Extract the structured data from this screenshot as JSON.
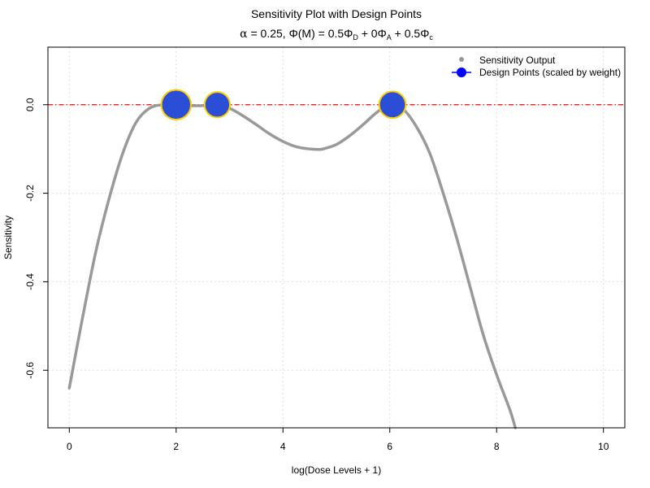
{
  "chart_data": {
    "type": "line",
    "title": "Sensitivity Plot with Design Points",
    "subtitle": {
      "alpha": "α",
      "alpha_eq": " = 0.25, ",
      "phi_m": "Φ(M)",
      "eq1": " = 0.5",
      "phi_d": "Φ",
      "sub_d": "D",
      "plus1": " + 0",
      "phi_a": "Φ",
      "sub_a": "A",
      "plus2": " + 0.5",
      "phi_c": "Φ",
      "sub_c": "c"
    },
    "xlabel": "log(Dose Levels + 1)",
    "ylabel": "Sensitivity",
    "xlim": [
      -0.4,
      10.4
    ],
    "ylim": [
      -0.73,
      0.13
    ],
    "x_ticks": [
      0,
      2,
      4,
      6,
      8,
      10
    ],
    "x_tick_labels": [
      "0",
      "2",
      "4",
      "6",
      "8",
      "10"
    ],
    "y_ticks": [
      -0.6,
      -0.4,
      -0.2,
      0.0
    ],
    "y_tick_labels": [
      "-0.6",
      "-0.4",
      "-0.2",
      "0.0"
    ],
    "grid": true,
    "reference_line": {
      "y": 0,
      "color": "#ff0000",
      "style": "dashed"
    },
    "series": [
      {
        "name": "Sensitivity Output",
        "color": "#999999",
        "x": [
          0,
          0.25,
          0.5,
          0.75,
          1.0,
          1.25,
          1.5,
          1.75,
          2.0,
          2.25,
          2.5,
          2.75,
          3.0,
          3.25,
          3.5,
          3.75,
          4.0,
          4.25,
          4.5,
          4.65,
          4.75,
          5.0,
          5.25,
          5.5,
          5.75,
          6.0,
          6.25,
          6.5,
          6.75,
          7.0,
          7.25,
          7.5,
          7.75,
          8.0,
          8.25,
          8.35
        ],
        "y": [
          -0.64,
          -0.48,
          -0.33,
          -0.21,
          -0.11,
          -0.04,
          -0.008,
          0.0,
          0.0,
          -0.002,
          -0.002,
          0.0,
          -0.008,
          -0.025,
          -0.045,
          -0.066,
          -0.083,
          -0.095,
          -0.1,
          -0.101,
          -0.1,
          -0.09,
          -0.07,
          -0.045,
          -0.018,
          0.0,
          -0.01,
          -0.05,
          -0.11,
          -0.2,
          -0.3,
          -0.41,
          -0.52,
          -0.61,
          -0.69,
          -0.73
        ]
      }
    ],
    "design_points": {
      "name": "Design Points (scaled by weight)",
      "fill": "#2a4fd6",
      "stroke": "#ffcc00",
      "points": [
        {
          "x": 2.0,
          "y": 0.0,
          "weight": 0.45
        },
        {
          "x": 2.77,
          "y": 0.0,
          "weight": 0.25
        },
        {
          "x": 6.05,
          "y": 0.0,
          "weight": 0.3
        }
      ]
    },
    "legend": {
      "position": "top-right",
      "items": [
        {
          "label": "Sensitivity Output",
          "marker": "point",
          "color": "#999999"
        },
        {
          "label": "Design Points (scaled by weight)",
          "marker": "circle-line",
          "color": "#0000ff"
        }
      ]
    }
  }
}
